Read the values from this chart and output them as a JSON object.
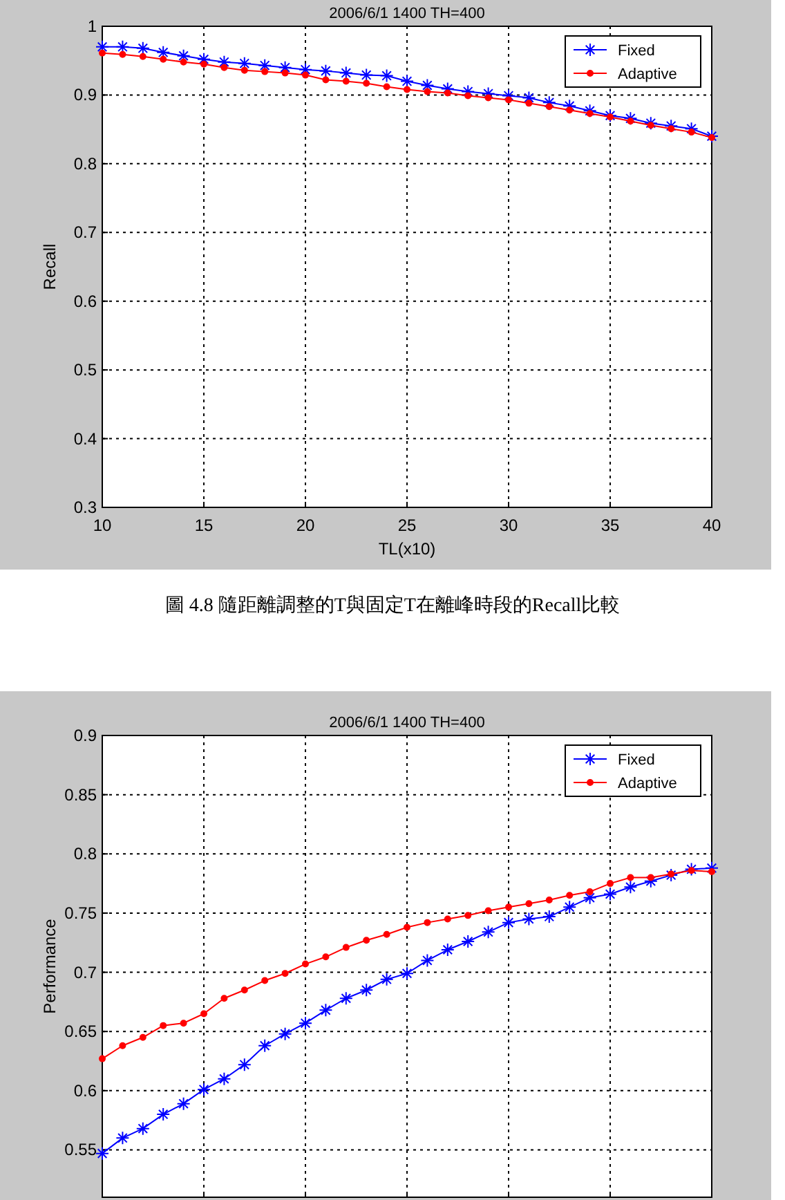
{
  "chart_data": [
    {
      "type": "line",
      "title": "2006/6/1 1400 TH=400",
      "xlabel": "TL(x10)",
      "ylabel": "Recall",
      "x": [
        10,
        11,
        12,
        13,
        14,
        15,
        16,
        17,
        18,
        19,
        20,
        21,
        22,
        23,
        24,
        25,
        26,
        27,
        28,
        29,
        30,
        31,
        32,
        33,
        34,
        35,
        36,
        37,
        38,
        39,
        40
      ],
      "series": [
        {
          "name": "Fixed",
          "color": "#0000ff",
          "marker": "cross",
          "values": [
            0.97,
            0.97,
            0.968,
            0.962,
            0.957,
            0.952,
            0.948,
            0.946,
            0.943,
            0.94,
            0.937,
            0.935,
            0.932,
            0.929,
            0.928,
            0.92,
            0.914,
            0.909,
            0.905,
            0.902,
            0.899,
            0.896,
            0.889,
            0.884,
            0.877,
            0.87,
            0.866,
            0.859,
            0.855,
            0.851,
            0.84
          ]
        },
        {
          "name": "Adaptive",
          "color": "#ff0000",
          "marker": "circle",
          "values": [
            0.961,
            0.959,
            0.956,
            0.952,
            0.948,
            0.945,
            0.94,
            0.936,
            0.934,
            0.932,
            0.929,
            0.922,
            0.92,
            0.917,
            0.912,
            0.908,
            0.905,
            0.903,
            0.899,
            0.896,
            0.893,
            0.888,
            0.883,
            0.878,
            0.873,
            0.868,
            0.862,
            0.856,
            0.851,
            0.846,
            0.838
          ]
        }
      ],
      "xlim": [
        10,
        40
      ],
      "xticks": [
        10,
        15,
        20,
        25,
        30,
        35,
        40
      ],
      "ylim": [
        0.3,
        1
      ],
      "yticks": [
        0.3,
        0.4,
        0.5,
        0.6,
        0.7,
        0.8,
        0.9,
        1
      ],
      "grid": true,
      "legend": "top right",
      "annotations": [
        "圖 4.8 隨距離調整的T與固定T在離峰時段的Recall比較"
      ]
    },
    {
      "type": "line",
      "title": "2006/6/1 1400 TH=400",
      "ylabel": "Performance",
      "x": [
        10,
        11,
        12,
        13,
        14,
        15,
        16,
        17,
        18,
        19,
        20,
        21,
        22,
        23,
        24,
        25,
        26,
        27,
        28,
        29,
        30,
        31,
        32,
        33,
        34,
        35,
        36,
        37,
        38,
        39,
        40
      ],
      "series": [
        {
          "name": "Fixed",
          "color": "#0000ff",
          "marker": "cross",
          "values": [
            0.547,
            0.56,
            0.568,
            0.58,
            0.589,
            0.601,
            0.61,
            0.622,
            0.638,
            0.648,
            0.657,
            0.668,
            0.678,
            0.685,
            0.694,
            0.699,
            0.71,
            0.719,
            0.726,
            0.734,
            0.742,
            0.745,
            0.747,
            0.755,
            0.763,
            0.766,
            0.772,
            0.777,
            0.782,
            0.787,
            0.788
          ]
        },
        {
          "name": "Adaptive",
          "color": "#ff0000",
          "marker": "circle",
          "values": [
            0.627,
            0.638,
            0.645,
            0.655,
            0.657,
            0.665,
            0.678,
            0.685,
            0.693,
            0.699,
            0.707,
            0.713,
            0.721,
            0.727,
            0.732,
            0.738,
            0.742,
            0.745,
            0.748,
            0.752,
            0.755,
            0.758,
            0.761,
            0.765,
            0.768,
            0.775,
            0.78,
            0.78,
            0.783,
            0.786,
            0.785
          ]
        }
      ],
      "xlim": [
        10,
        40
      ],
      "xticks": [
        {
          "value": 10,
          "label": null
        },
        {
          "value": 15,
          "label": null
        },
        {
          "value": 20,
          "label": null
        },
        {
          "value": 25,
          "label": null
        },
        {
          "value": 30,
          "label": null
        },
        {
          "value": 35,
          "label": null
        },
        {
          "value": 40,
          "label": null
        }
      ],
      "ylim": [
        0.51,
        0.9
      ],
      "yticks": [
        0.55,
        0.6,
        0.65,
        0.7,
        0.75,
        0.8,
        0.85,
        0.9
      ],
      "grid": true,
      "legend": "top right",
      "tick_labels": "y"
    }
  ]
}
